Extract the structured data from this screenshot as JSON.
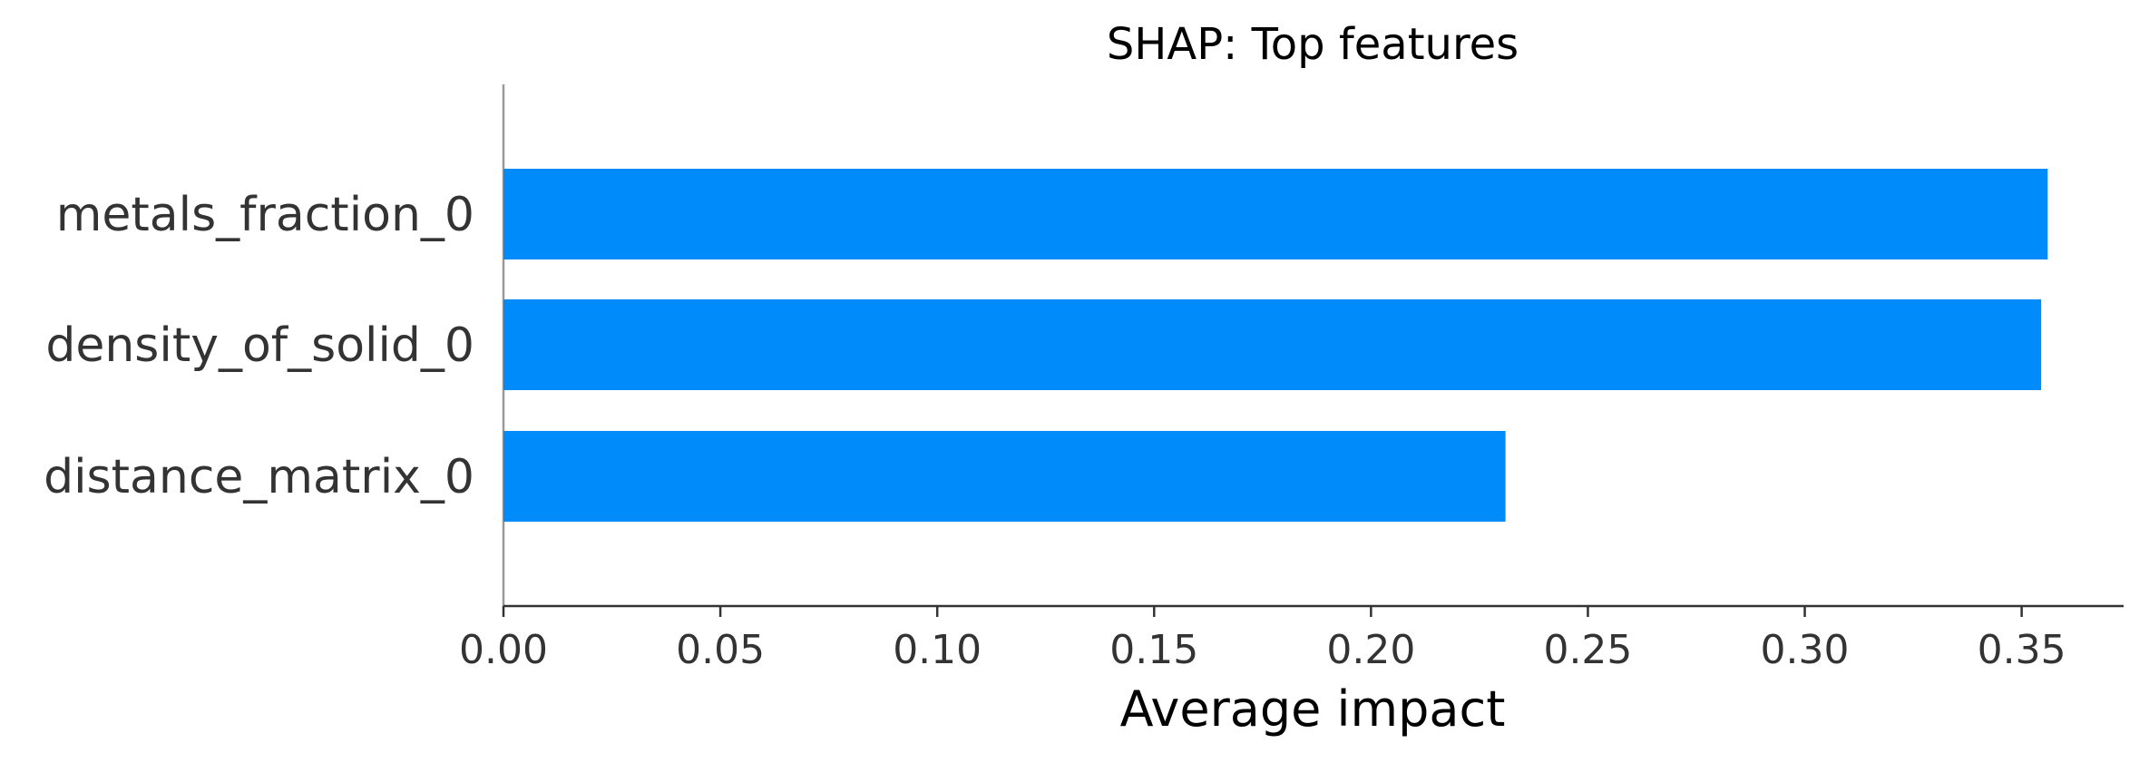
{
  "chart_data": {
    "type": "bar",
    "orientation": "horizontal",
    "title": "SHAP: Top features",
    "xlabel": "Average impact",
    "ylabel": "",
    "categories": [
      "metals_fraction_0",
      "density_of_solid_0",
      "distance_matrix_0"
    ],
    "values": [
      0.356,
      0.3545,
      0.231
    ],
    "xlim": [
      0,
      0.3735
    ],
    "xticks": [
      "0.00",
      "0.05",
      "0.10",
      "0.15",
      "0.20",
      "0.25",
      "0.30",
      "0.35"
    ],
    "grid": false,
    "legend": "none",
    "bar_color": "#008bfb"
  }
}
